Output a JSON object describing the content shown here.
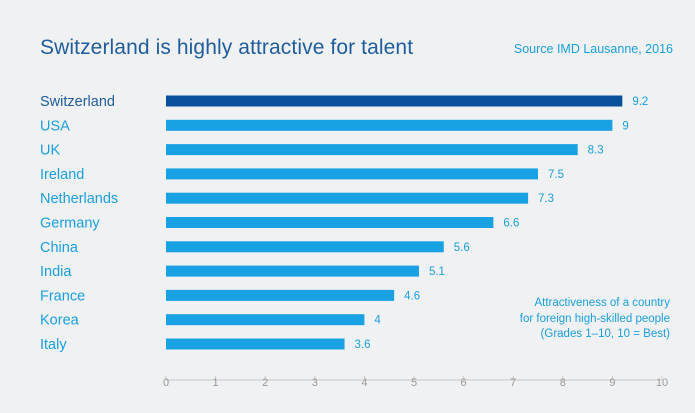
{
  "title": "Switzerland is highly attractive for talent",
  "source": "Source IMD Lausanne, 2016",
  "note": {
    "line1": "Attractiveness of a country",
    "line2": "for foreign high-skilled people",
    "line3": "(Grades 1–10, 10 = Best)"
  },
  "colors": {
    "highlight_bar": "#0a4f9a",
    "bar": "#19a2e3",
    "title": "#1f5d9c",
    "accent": "#1a9fde",
    "background": "#f0f1f2"
  },
  "chart_data": {
    "type": "bar",
    "orientation": "horizontal",
    "title": "Switzerland is highly attractive for talent",
    "xlabel": "",
    "ylabel": "",
    "categories": [
      "Switzerland",
      "USA",
      "UK",
      "Ireland",
      "Netherlands",
      "Germany",
      "China",
      "India",
      "France",
      "Korea",
      "Italy"
    ],
    "values": [
      9.2,
      9,
      8.3,
      7.5,
      7.3,
      6.6,
      5.6,
      5.1,
      4.6,
      4,
      3.6
    ],
    "value_labels": [
      "9.2",
      "9",
      "8.3",
      "7.5",
      "7.3",
      "6.6",
      "5.6",
      "5.1",
      "4.6",
      "4",
      "3.6"
    ],
    "highlight": "Switzerland",
    "xlim": [
      0,
      10
    ],
    "xticks": [
      "0",
      "1",
      "2",
      "3",
      "4",
      "5",
      "6",
      "7",
      "8",
      "9",
      "10"
    ],
    "grid": false
  }
}
